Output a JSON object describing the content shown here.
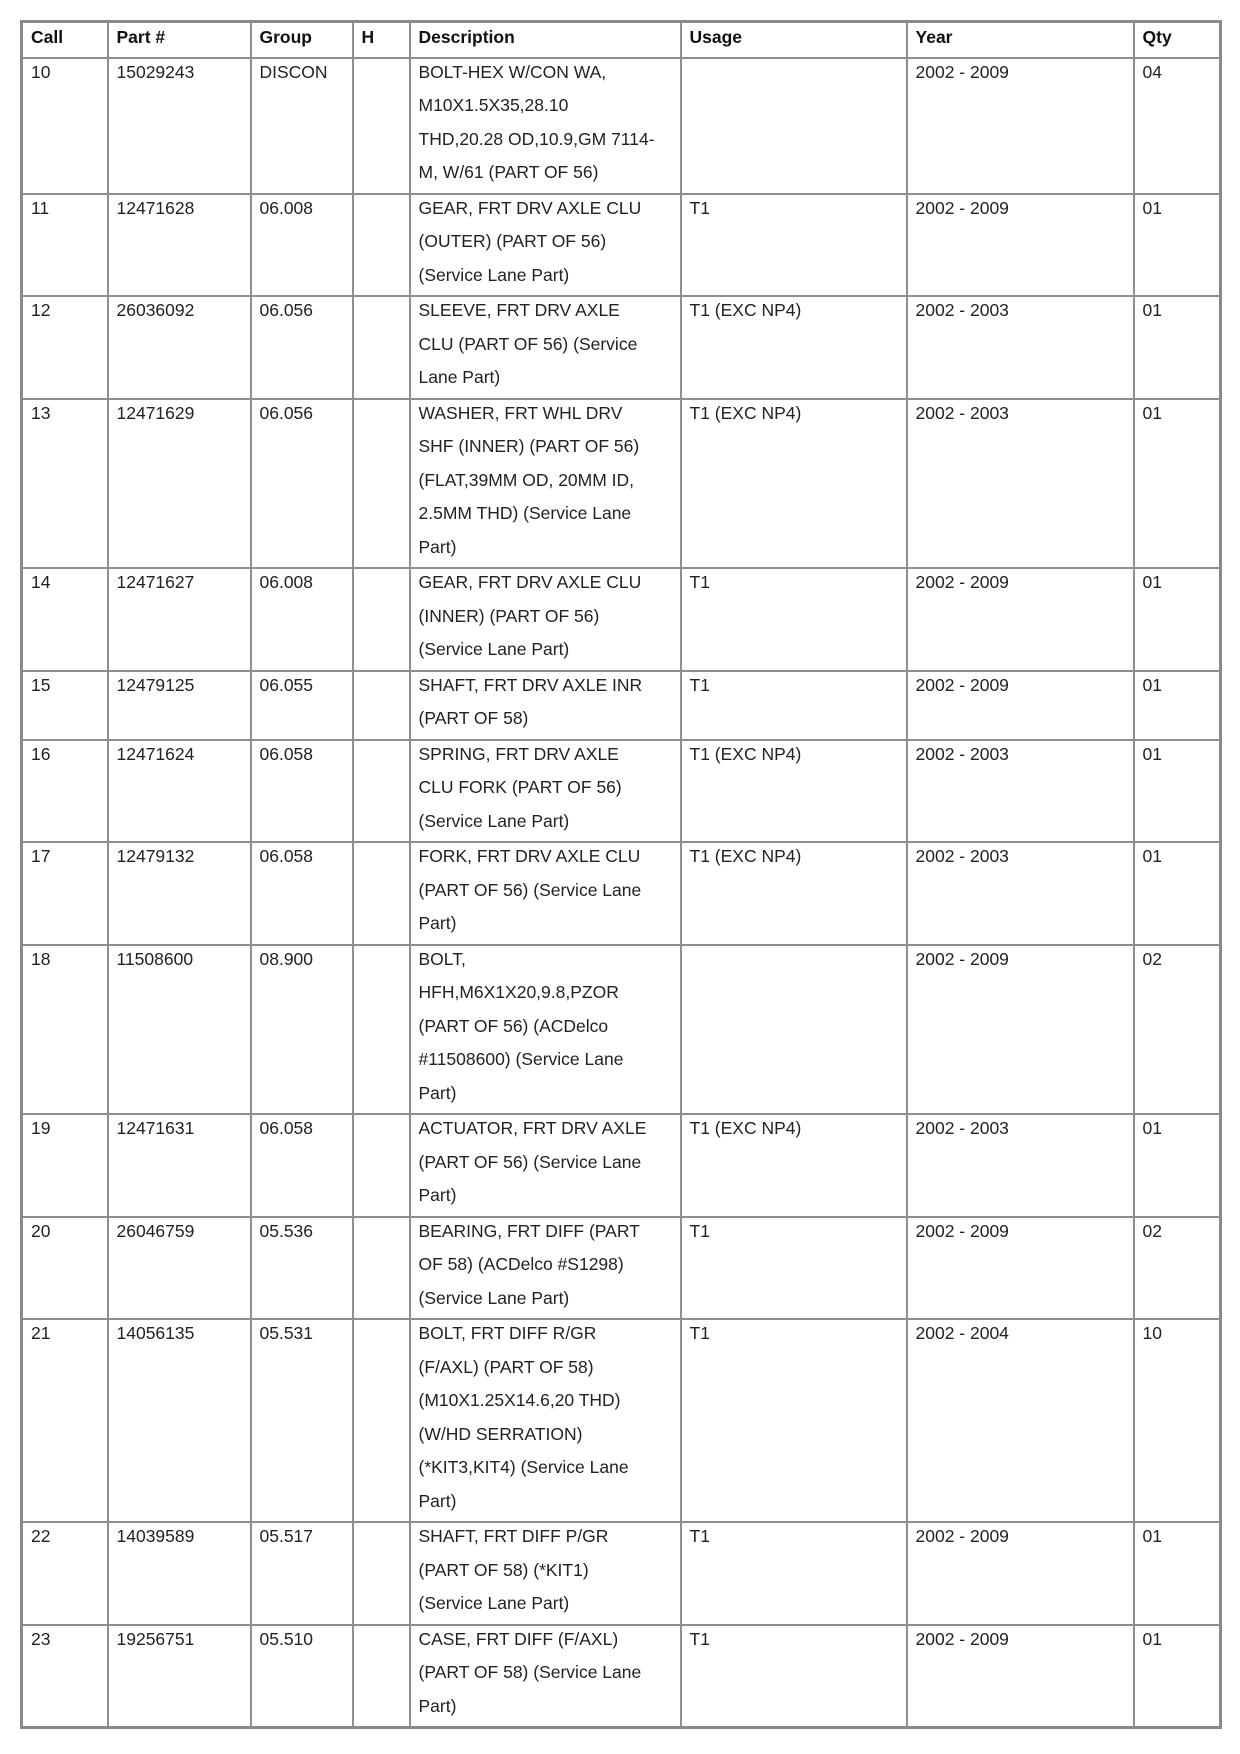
{
  "table": {
    "headers": [
      "Call",
      "Part #",
      "Group",
      "H",
      "Description",
      "Usage",
      "Year",
      "Qty"
    ],
    "rows": [
      {
        "call": "10",
        "part": "15029243",
        "group": "DISCON",
        "h": "",
        "description": [
          "BOLT-HEX W/CON WA,",
          "M10X1.5X35,28.10",
          "THD,20.28 OD,10.9,GM 7114-",
          "M, W/61 (PART OF 56)"
        ],
        "usage": "",
        "year": "2002 - 2009",
        "qty": "04"
      },
      {
        "call": "11",
        "part": "12471628",
        "group": "06.008",
        "h": "",
        "description": [
          "GEAR, FRT DRV AXLE CLU",
          "(OUTER) (PART OF 56)",
          "(Service Lane Part)"
        ],
        "usage": "T1",
        "year": "2002 - 2009",
        "qty": "01"
      },
      {
        "call": "12",
        "part": "26036092",
        "group": "06.056",
        "h": "",
        "description": [
          "SLEEVE, FRT DRV AXLE",
          "CLU (PART OF 56)  (Service",
          "Lane Part)"
        ],
        "usage": "T1 (EXC NP4)",
        "year": "2002 - 2003",
        "qty": "01"
      },
      {
        "call": "13",
        "part": "12471629",
        "group": "06.056",
        "h": "",
        "description": [
          "WASHER, FRT WHL DRV",
          "SHF (INNER) (PART OF 56)",
          "(FLAT,39MM OD, 20MM ID,",
          "2.5MM THD)  (Service Lane",
          "Part)"
        ],
        "usage": "T1 (EXC NP4)",
        "year": "2002 - 2003",
        "qty": "01"
      },
      {
        "call": "14",
        "part": "12471627",
        "group": "06.008",
        "h": "",
        "description": [
          "GEAR, FRT DRV AXLE CLU",
          "(INNER) (PART OF 56)",
          "(Service Lane Part)"
        ],
        "usage": "T1",
        "year": "2002 - 2009",
        "qty": "01"
      },
      {
        "call": "15",
        "part": "12479125",
        "group": "06.055",
        "h": "",
        "description": [
          "SHAFT, FRT DRV AXLE INR",
          "(PART OF 58)"
        ],
        "usage": "T1",
        "year": "2002 - 2009",
        "qty": "01"
      },
      {
        "call": "16",
        "part": "12471624",
        "group": "06.058",
        "h": "",
        "description": [
          "SPRING, FRT DRV AXLE",
          "CLU FORK (PART OF 56)",
          "(Service Lane Part)"
        ],
        "usage": "T1 (EXC NP4)",
        "year": "2002 - 2003",
        "qty": "01"
      },
      {
        "call": "17",
        "part": "12479132",
        "group": "06.058",
        "h": "",
        "description": [
          "FORK, FRT DRV AXLE CLU",
          "(PART OF 56)  (Service Lane",
          "Part)"
        ],
        "usage": "T1 (EXC NP4)",
        "year": "2002 - 2003",
        "qty": "01"
      },
      {
        "call": "18",
        "part": "11508600",
        "group": "08.900",
        "h": "",
        "description": [
          "BOLT,",
          "HFH,M6X1X20,9.8,PZOR",
          "(PART OF 56) (ACDelco",
          "#11508600)  (Service Lane",
          "Part)"
        ],
        "usage": "",
        "year": "2002 - 2009",
        "qty": "02"
      },
      {
        "call": "19",
        "part": "12471631",
        "group": "06.058",
        "h": "",
        "description": [
          "ACTUATOR, FRT DRV AXLE",
          "(PART OF 56)  (Service Lane",
          "Part)"
        ],
        "usage": "T1 (EXC NP4)",
        "year": "2002 - 2003",
        "qty": "01"
      },
      {
        "call": "20",
        "part": "26046759",
        "group": "05.536",
        "h": "",
        "description": [
          "BEARING, FRT DIFF (PART",
          "OF 58) (ACDelco #S1298)",
          "(Service Lane Part)"
        ],
        "usage": "T1",
        "year": "2002 - 2009",
        "qty": "02"
      },
      {
        "call": "21",
        "part": "14056135",
        "group": "05.531",
        "h": "",
        "description": [
          "BOLT, FRT DIFF R/GR",
          "(F/AXL) (PART OF 58)",
          "(M10X1.25X14.6,20 THD)",
          "(W/HD SERRATION)",
          "(*KIT3,KIT4)  (Service Lane",
          "Part)"
        ],
        "usage": "T1",
        "year": "2002 - 2004",
        "qty": "10"
      },
      {
        "call": "22",
        "part": "14039589",
        "group": "05.517",
        "h": "",
        "description": [
          "SHAFT, FRT DIFF P/GR",
          "(PART OF 58) (*KIT1)",
          "(Service Lane Part)"
        ],
        "usage": "T1",
        "year": "2002 - 2009",
        "qty": "01"
      },
      {
        "call": "23",
        "part": "19256751",
        "group": "05.510",
        "h": "",
        "description": [
          "CASE, FRT DIFF (F/AXL)",
          "(PART OF 58)  (Service Lane",
          "Part)"
        ],
        "usage": "T1",
        "year": "2002 - 2009",
        "qty": "01"
      }
    ]
  }
}
